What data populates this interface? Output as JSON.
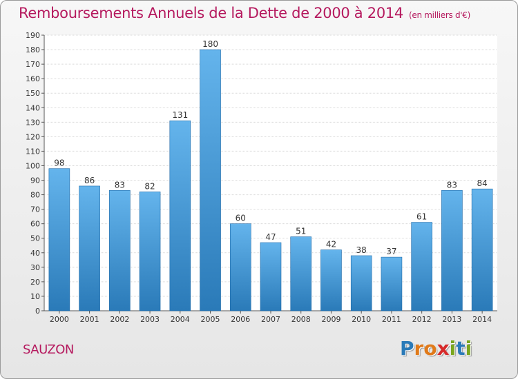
{
  "title": "Remboursements Annuels de la Dette de 2000 à 2014",
  "unit_note": "(en milliers d'€)",
  "commune": "SAUZON",
  "logo": {
    "text": "Proxiti",
    "letters": [
      {
        "ch": "P",
        "color": "#2a7ab8"
      },
      {
        "ch": "r",
        "color": "#e07a1a"
      },
      {
        "ch": "o",
        "color": "#e07a1a"
      },
      {
        "ch": "x",
        "color": "#d62a2a"
      },
      {
        "ch": "i",
        "color": "#7aa61e"
      },
      {
        "ch": "t",
        "color": "#2a7ab8"
      },
      {
        "ch": "i",
        "color": "#7aa61e"
      }
    ]
  },
  "colors": {
    "accent": "#b5195e",
    "bar_light": "#64b4ec",
    "bar_dark": "#2a7ab8",
    "bar_edge": "#1f6aa8",
    "axis": "#555555"
  },
  "chart_data": {
    "type": "bar",
    "categories": [
      "2000",
      "2001",
      "2002",
      "2003",
      "2004",
      "2005",
      "2006",
      "2007",
      "2008",
      "2009",
      "2010",
      "2011",
      "2012",
      "2013",
      "2014"
    ],
    "values": [
      98,
      86,
      83,
      82,
      131,
      180,
      60,
      47,
      51,
      42,
      38,
      37,
      61,
      83,
      84
    ],
    "ylim": [
      0,
      190
    ],
    "ytick_step": 10,
    "grid": true,
    "data_labels": true
  }
}
